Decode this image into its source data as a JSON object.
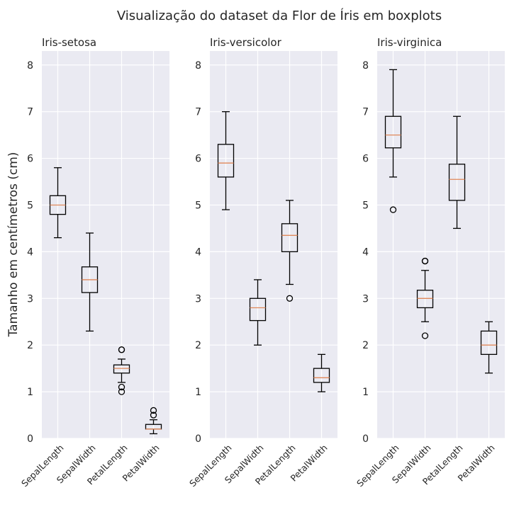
{
  "chart_data": {
    "type": "boxplot",
    "title": "Visualização do dataset da Flor de Íris em boxplots",
    "ylabel": "Tamanho em centímetros (cm)",
    "ylim": [
      0,
      8.3
    ],
    "yticks": [
      "0",
      "1",
      "2",
      "3",
      "4",
      "5",
      "6",
      "7",
      "8"
    ],
    "grid": true,
    "colors": {
      "background": "#eaeaf2",
      "grid": "#ffffff",
      "box": "#000000",
      "median": "#e0885a"
    },
    "categories": [
      "SepalLength",
      "SepalWidth",
      "PetalLength",
      "PetalWidth"
    ],
    "panels": [
      {
        "title": "Iris-setosa",
        "boxes": [
          {
            "whislo": 4.3,
            "q1": 4.8,
            "med": 5.0,
            "q3": 5.2,
            "whishi": 5.8,
            "fliers": []
          },
          {
            "whislo": 2.3,
            "q1": 3.125,
            "med": 3.4,
            "q3": 3.675,
            "whishi": 4.4,
            "fliers": []
          },
          {
            "whislo": 1.2,
            "q1": 1.4,
            "med": 1.5,
            "q3": 1.575,
            "whishi": 1.7,
            "fliers": [
              1.0,
              1.1,
              1.9,
              1.9
            ]
          },
          {
            "whislo": 0.1,
            "q1": 0.2,
            "med": 0.2,
            "q3": 0.3,
            "whishi": 0.4,
            "fliers": [
              0.5,
              0.6
            ]
          }
        ]
      },
      {
        "title": "Iris-versicolor",
        "boxes": [
          {
            "whislo": 4.9,
            "q1": 5.6,
            "med": 5.9,
            "q3": 6.3,
            "whishi": 7.0,
            "fliers": []
          },
          {
            "whislo": 2.0,
            "q1": 2.525,
            "med": 2.8,
            "q3": 3.0,
            "whishi": 3.4,
            "fliers": []
          },
          {
            "whislo": 3.3,
            "q1": 4.0,
            "med": 4.35,
            "q3": 4.6,
            "whishi": 5.1,
            "fliers": [
              3.0
            ]
          },
          {
            "whislo": 1.0,
            "q1": 1.2,
            "med": 1.3,
            "q3": 1.5,
            "whishi": 1.8,
            "fliers": []
          }
        ]
      },
      {
        "title": "Iris-virginica",
        "boxes": [
          {
            "whislo": 5.6,
            "q1": 6.225,
            "med": 6.5,
            "q3": 6.9,
            "whishi": 7.9,
            "fliers": [
              4.9
            ]
          },
          {
            "whislo": 2.5,
            "q1": 2.8,
            "med": 3.0,
            "q3": 3.175,
            "whishi": 3.6,
            "fliers": [
              2.2,
              3.8,
              3.8
            ]
          },
          {
            "whislo": 4.5,
            "q1": 5.1,
            "med": 5.55,
            "q3": 5.875,
            "whishi": 6.9,
            "fliers": []
          },
          {
            "whislo": 1.4,
            "q1": 1.8,
            "med": 2.0,
            "q3": 2.3,
            "whishi": 2.5,
            "fliers": []
          }
        ]
      }
    ]
  }
}
